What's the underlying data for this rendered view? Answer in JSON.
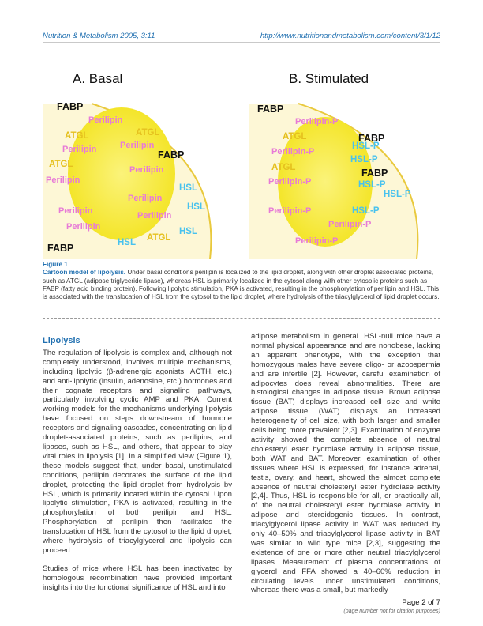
{
  "header": {
    "journal": "Nutrition & Metabolism 2005, 3:11",
    "url": "http://www.nutritionandmetabolism.com/content/3/1/12"
  },
  "figure": {
    "panel_a": {
      "title": "A.  Basal",
      "labels": [
        {
          "text": "FABP",
          "kind": "fabp"
        },
        {
          "text": "Perilipin",
          "kind": "peri"
        },
        {
          "text": "ATGL",
          "kind": "atgl"
        },
        {
          "text": "ATGL",
          "kind": "atgl"
        },
        {
          "text": "Perilipin",
          "kind": "peri"
        },
        {
          "text": "Perilipin",
          "kind": "peri"
        },
        {
          "text": "FABP",
          "kind": "fabp"
        },
        {
          "text": "ATGL",
          "kind": "atgl"
        },
        {
          "text": "Perilipin",
          "kind": "peri"
        },
        {
          "text": "Perilipin",
          "kind": "peri"
        },
        {
          "text": "HSL",
          "kind": "hsl"
        },
        {
          "text": "Perilipin",
          "kind": "peri"
        },
        {
          "text": "HSL",
          "kind": "hsl"
        },
        {
          "text": "Perilipin",
          "kind": "peri"
        },
        {
          "text": "Perilipin",
          "kind": "peri"
        },
        {
          "text": "HSL",
          "kind": "hsl"
        },
        {
          "text": "Perilipin",
          "kind": "peri"
        },
        {
          "text": "HSL",
          "kind": "hsl"
        },
        {
          "text": "ATGL",
          "kind": "atgl"
        },
        {
          "text": "FABP",
          "kind": "fabp"
        }
      ]
    },
    "panel_b": {
      "title": "B.  Stimulated",
      "labels": [
        {
          "text": "FABP",
          "kind": "fabp"
        },
        {
          "text": "Perilipin-P",
          "kind": "peri"
        },
        {
          "text": "ATGL",
          "kind": "atgl"
        },
        {
          "text": "FABP",
          "kind": "fabp"
        },
        {
          "text": "HSL-P",
          "kind": "hsl"
        },
        {
          "text": "Perilipin-P",
          "kind": "peri"
        },
        {
          "text": "HSL-P",
          "kind": "hsl"
        },
        {
          "text": "ATGL",
          "kind": "atgl"
        },
        {
          "text": "FABP",
          "kind": "fabp"
        },
        {
          "text": "Perilipin-P",
          "kind": "peri"
        },
        {
          "text": "HSL-P",
          "kind": "hsl"
        },
        {
          "text": "HSL-P",
          "kind": "hsl"
        },
        {
          "text": "Perilipin-P",
          "kind": "peri"
        },
        {
          "text": "HSL-P",
          "kind": "hsl"
        },
        {
          "text": "Perilipin-P",
          "kind": "peri"
        },
        {
          "text": "Perilipin-P",
          "kind": "peri"
        }
      ]
    },
    "colors": {
      "fabp": "#111111",
      "perilipin": "#e77ad7",
      "atgl": "#e5c01e",
      "hsl": "#48c2ee",
      "droplet": "#f7ee3a",
      "cytosol": "#fdf6cc"
    }
  },
  "caption": {
    "label": "Figure 1",
    "title": "Cartoon model of lipolysis.",
    "text": " Under basal conditions perilipin is localized to the lipid droplet, along with other droplet associated proteins, such as ATGL (adipose triglyceride lipase), whereas HSL is primarily localized in the cytosol along with other cytosolic proteins such as FABP (fatty acid binding protein). Following lipolytic stimulation, PKA is activated, resulting in the phosphorylation of perilipin and HSL. This is associated with the translocation of HSL from the cytosol to the lipid droplet, where hydrolysis of the triacylglycerol of lipid droplet occurs."
  },
  "body": {
    "section_title": "Lipolysis",
    "left_paragraphs": [
      "The regulation of lipolysis is complex and, although not completely understood, involves multiple mechanisms, including lipolytic (β-adrenergic agonists, ACTH, etc.) and anti-lipolytic (insulin, adenosine, etc.) hormones and their cognate receptors and signaling pathways, particularly involving cyclic AMP and PKA. Current working models for the mechanisms underlying lipolysis have focused on steps downstream of hormone receptors and signaling cascades, concentrating on lipid droplet-associated proteins, such as perilipins, and lipases, such as HSL, and others, that appear to play vital roles in lipolysis [1]. In a simplified view (Figure 1), these models suggest that, under basal, unstimulated conditions, perilipin decorates the surface of the lipid droplet, protecting the lipid droplet from hydrolysis by HSL, which is primarily located within the cytosol. Upon lipolytic stimulation, PKA is activated, resulting in the phosphorylation of both perilipin and HSL. Phosphorylation of perilipin then facilitates the translocation of HSL from the cytosol to the lipid droplet, where hydrolysis of triacylglycerol and lipolysis can proceed.",
      "Studies of mice where HSL has been inactivated by homologous recombination have provided important insights into the functional significance of HSL and into"
    ],
    "right_paragraphs": [
      "adipose metabolism in general. HSL-null mice have a normal physical appearance and are nonobese, lacking an apparent phenotype, with the exception that homozygous males have severe oligo- or azoospermia and are infertile [2]. However, careful examination of adipocytes does reveal abnormalities. There are histological changes in adipose tissue. Brown adipose tissue (BAT) displays increased cell size and white adipose tissue (WAT) displays an increased heterogeneity of cell size, with both larger and smaller cells being more prevalent [2,3]. Examination of enzyme activity showed the complete absence of neutral cholesteryl ester hydrolase activity in adipose tissue, both WAT and BAT. Moreover, examination of other tissues where HSL is expressed, for instance adrenal, testis, ovary, and heart, showed the almost complete absence of neutral cholesteryl ester hydrolase activity [2,4]. Thus, HSL is responsible for all, or practically all, of the neutral cholesteryl ester hydrolase activity in adipose and steroidogenic tissues. In contrast, triacylglycerol lipase activity in WAT was reduced by only 40–50% and triacylglycerol lipase activity in BAT was similar to wild type mice [2,3], suggesting the existence of one or more other neutral triacylglycerol lipases. Measurement of plasma concentrations of glycerol and FFA showed a 40–60% reduction in circulating levels under unstimulated conditions, whereas there was a small, but markedly"
    ]
  },
  "footer": {
    "page": "Page 2 of 7",
    "note": "(page number not for citation purposes)"
  }
}
